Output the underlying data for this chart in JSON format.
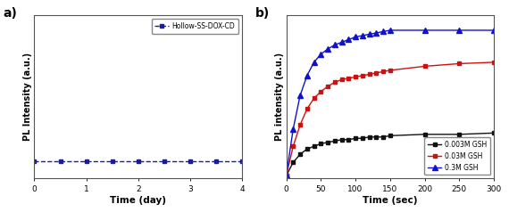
{
  "panel_a": {
    "label": "a)",
    "xlabel": "Time (day)",
    "ylabel": "PL Intensity (a.u.)",
    "xlim": [
      0,
      4
    ],
    "xticks": [
      0,
      1,
      2,
      3,
      4
    ],
    "x": [
      0,
      0.5,
      1,
      1.5,
      2,
      2.5,
      3,
      3.5,
      4
    ],
    "y": [
      0.02,
      0.02,
      0.02,
      0.02,
      0.02,
      0.02,
      0.02,
      0.02,
      0.02
    ],
    "line_color": "#1a1aaa",
    "marker": "s",
    "marker_size": 3,
    "linewidth": 1.0,
    "legend_label": "Hollow-SS-DOX-CD"
  },
  "panel_b": {
    "label": "b)",
    "xlabel": "Time (sec)",
    "ylabel": "PL intensity (a.u.)",
    "xlim": [
      0,
      300
    ],
    "xticks": [
      0,
      50,
      100,
      150,
      200,
      250,
      300
    ],
    "series": [
      {
        "label": "0.003M GSH",
        "color": "#111111",
        "marker": "s",
        "marker_size": 3,
        "x": [
          0,
          10,
          20,
          30,
          40,
          50,
          60,
          70,
          80,
          90,
          100,
          110,
          120,
          130,
          140,
          150,
          200,
          250,
          300
        ],
        "y": [
          0.0,
          0.1,
          0.16,
          0.2,
          0.22,
          0.24,
          0.25,
          0.26,
          0.27,
          0.27,
          0.28,
          0.28,
          0.29,
          0.29,
          0.29,
          0.3,
          0.31,
          0.31,
          0.32
        ]
      },
      {
        "label": "0.03M GSH",
        "color": "#cc1111",
        "marker": "s",
        "marker_size": 3,
        "x": [
          0,
          10,
          20,
          30,
          40,
          50,
          60,
          70,
          80,
          90,
          100,
          110,
          120,
          130,
          140,
          150,
          200,
          250,
          300
        ],
        "y": [
          0.0,
          0.22,
          0.38,
          0.5,
          0.58,
          0.63,
          0.67,
          0.7,
          0.72,
          0.73,
          0.74,
          0.75,
          0.76,
          0.77,
          0.78,
          0.79,
          0.82,
          0.84,
          0.85
        ]
      },
      {
        "label": "0.3M GSH",
        "color": "#1111cc",
        "marker": "^",
        "marker_size": 4,
        "x": [
          0,
          10,
          20,
          30,
          40,
          50,
          60,
          70,
          80,
          90,
          100,
          110,
          120,
          130,
          140,
          150,
          200,
          250,
          300
        ],
        "y": [
          0.0,
          0.35,
          0.6,
          0.75,
          0.85,
          0.91,
          0.95,
          0.98,
          1.0,
          1.02,
          1.04,
          1.05,
          1.06,
          1.07,
          1.08,
          1.09,
          1.09,
          1.09,
          1.09
        ]
      }
    ]
  },
  "fig_facecolor": "#ffffff",
  "axes_facecolor": "#ffffff"
}
